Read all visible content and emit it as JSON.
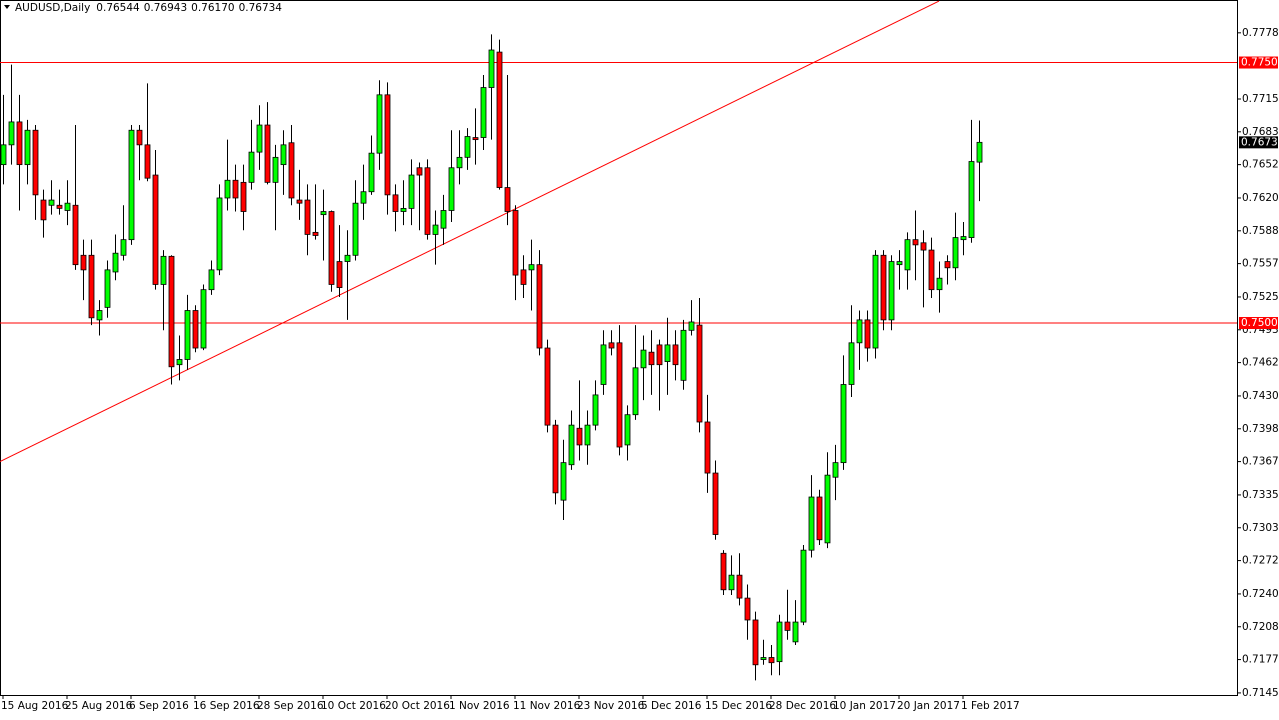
{
  "chart_data": {
    "type": "candlestick",
    "title": "AUDUSD,Daily",
    "last_bar_labels": [
      "0.76544",
      "0.76943",
      "0.76170",
      "0.76734"
    ],
    "categories": [
      "15 Aug 2016",
      null,
      null,
      null,
      null,
      null,
      null,
      null,
      "25 Aug 2016",
      null,
      null,
      null,
      null,
      null,
      null,
      null,
      "6 Sep 2016",
      null,
      null,
      null,
      null,
      null,
      null,
      null,
      "16 Sep 2016",
      null,
      null,
      null,
      null,
      null,
      null,
      null,
      "28 Sep 2016",
      null,
      null,
      null,
      null,
      null,
      null,
      null,
      "10 Oct 2016",
      null,
      null,
      null,
      null,
      null,
      null,
      null,
      "20 Oct 2016",
      null,
      null,
      null,
      null,
      null,
      null,
      null,
      "1 Nov 2016",
      null,
      null,
      null,
      null,
      null,
      null,
      null,
      "11 Nov 2016",
      null,
      null,
      null,
      null,
      null,
      null,
      null,
      "23 Nov 2016",
      null,
      null,
      null,
      null,
      null,
      null,
      null,
      "5 Dec 2016",
      null,
      null,
      null,
      null,
      null,
      null,
      null,
      "15 Dec 2016",
      null,
      null,
      null,
      null,
      null,
      null,
      null,
      "28 Dec 2016",
      null,
      null,
      null,
      null,
      null,
      null,
      null,
      "10 Jan 2017",
      null,
      null,
      null,
      null,
      null,
      null,
      null,
      "20 Jan 2017",
      null,
      null,
      null,
      null,
      null,
      null,
      null,
      "1 Feb 2017",
      null,
      null
    ],
    "open": [
      0.7652,
      0.7671,
      0.7693,
      0.7652,
      0.7685,
      0.7618,
      0.7613,
      0.7613,
      0.7608,
      0.7613,
      0.7565,
      0.7565,
      0.7503,
      0.7515,
      0.7549,
      0.7565,
      0.758,
      0.7685,
      0.7671,
      0.7642,
      0.7537,
      0.7564,
      0.746,
      0.7465,
      0.7512,
      0.7476,
      0.7532,
      0.7551,
      0.762,
      0.7637,
      0.7635,
      0.7635,
      0.7664,
      0.769,
      0.7635,
      0.7652,
      0.7673,
      0.7618,
      0.7618,
      0.7587,
      0.7604,
      0.7607,
      0.7559,
      0.7559,
      0.7565,
      0.7615,
      0.7626,
      0.7663,
      0.7719,
      0.7623,
      0.7607,
      0.761,
      0.7649,
      0.7649,
      0.7585,
      0.7591,
      0.7608,
      0.7649,
      0.7659,
      0.7678,
      0.7678,
      0.7726,
      0.776,
      0.763,
      0.7608,
      0.7551,
      0.7551,
      0.7556,
      0.7476,
      0.7402,
      0.733,
      0.7364,
      0.7399,
      0.7383,
      0.7402,
      0.7441,
      0.7481,
      0.7481,
      0.7383,
      0.7412,
      0.7457,
      0.7472,
      0.7479,
      0.7463,
      0.7479,
      0.7445,
      0.7493,
      0.7498,
      0.7405,
      0.7356,
      0.7279,
      0.7244,
      0.7258,
      0.7236,
      0.7215,
      0.7177,
      0.7179,
      0.7175,
      0.7213,
      0.7194,
      0.7213,
      0.7282,
      0.7333,
      0.7289,
      0.7352,
      0.7366,
      0.7441,
      0.7481,
      0.7503,
      0.7476,
      0.7565,
      0.7503,
      0.7556,
      0.7551,
      0.758,
      0.7577,
      0.757,
      0.7532,
      0.7559,
      0.7553,
      0.758,
      0.7582,
      0.76544
    ],
    "high": [
      0.7719,
      0.7748,
      0.7719,
      0.7695,
      0.769,
      0.7628,
      0.7637,
      0.7628,
      0.7637,
      0.769,
      0.758,
      0.758,
      0.7522,
      0.756,
      0.7585,
      0.7613,
      0.769,
      0.769,
      0.773,
      0.7666,
      0.757,
      0.7565,
      0.7488,
      0.7527,
      0.7517,
      0.7537,
      0.756,
      0.7633,
      0.7676,
      0.7652,
      0.7652,
      0.7695,
      0.7709,
      0.7712,
      0.7671,
      0.7685,
      0.769,
      0.7647,
      0.7633,
      0.7633,
      0.7628,
      0.7608,
      0.7594,
      0.7589,
      0.7637,
      0.7652,
      0.768,
      0.7733,
      0.7731,
      0.7633,
      0.7637,
      0.7657,
      0.7654,
      0.7657,
      0.7608,
      0.7623,
      0.7685,
      0.7685,
      0.7687,
      0.7706,
      0.7738,
      0.7777,
      0.7772,
      0.7738,
      0.7613,
      0.7565,
      0.758,
      0.757,
      0.7484,
      0.7407,
      0.7388,
      0.7416,
      0.7445,
      0.7416,
      0.7445,
      0.7493,
      0.7493,
      0.7498,
      0.7421,
      0.7498,
      0.7488,
      0.7493,
      0.7484,
      0.7505,
      0.7493,
      0.7503,
      0.7522,
      0.7524,
      0.7431,
      0.7368,
      0.7282,
      0.7277,
      0.7279,
      0.7249,
      0.7223,
      0.7196,
      0.7191,
      0.722,
      0.7244,
      0.7234,
      0.7287,
      0.7354,
      0.734,
      0.7376,
      0.7383,
      0.7469,
      0.7517,
      0.7512,
      0.7512,
      0.757,
      0.757,
      0.7565,
      0.757,
      0.7587,
      0.7608,
      0.7589,
      0.7582,
      0.7559,
      0.7565,
      0.7606,
      0.7597,
      0.7695,
      0.76943
    ],
    "low": [
      0.7633,
      0.7652,
      0.7608,
      0.7633,
      0.7599,
      0.7582,
      0.7604,
      0.7604,
      0.7594,
      0.7551,
      0.7522,
      0.7498,
      0.7488,
      0.7505,
      0.7541,
      0.756,
      0.7575,
      0.7637,
      0.7636,
      0.7532,
      0.7493,
      0.7441,
      0.7445,
      0.7455,
      0.7472,
      0.7474,
      0.7527,
      0.7546,
      0.7608,
      0.7607,
      0.7589,
      0.7628,
      0.7647,
      0.7633,
      0.7589,
      0.7623,
      0.7613,
      0.7599,
      0.7565,
      0.758,
      0.756,
      0.753,
      0.7525,
      0.7503,
      0.756,
      0.7599,
      0.7623,
      0.7647,
      0.7604,
      0.7588,
      0.7594,
      0.7594,
      0.7589,
      0.758,
      0.7556,
      0.7575,
      0.7597,
      0.7633,
      0.7647,
      0.7652,
      0.7666,
      0.7676,
      0.7628,
      0.7594,
      0.7522,
      0.7524,
      0.7512,
      0.7469,
      0.7395,
      0.7326,
      0.7311,
      0.7359,
      0.7368,
      0.7364,
      0.7397,
      0.7431,
      0.7469,
      0.7373,
      0.7368,
      0.7407,
      0.7426,
      0.7431,
      0.7416,
      0.7431,
      0.7445,
      0.7436,
      0.7488,
      0.7395,
      0.7337,
      0.7292,
      0.7239,
      0.7239,
      0.7229,
      0.7196,
      0.7157,
      0.7172,
      0.7162,
      0.7162,
      0.7196,
      0.7191,
      0.721,
      0.7275,
      0.7287,
      0.7284,
      0.733,
      0.7359,
      0.7429,
      0.7455,
      0.7463,
      0.7466,
      0.7493,
      0.7493,
      0.7532,
      0.7532,
      0.7541,
      0.7515,
      0.7524,
      0.751,
      0.7537,
      0.7541,
      0.7565,
      0.7577,
      0.7617
    ],
    "close": [
      0.7671,
      0.7693,
      0.7652,
      0.7685,
      0.7623,
      0.7599,
      0.7618,
      0.761,
      0.7615,
      0.7556,
      0.7551,
      0.7505,
      0.7512,
      0.7551,
      0.7567,
      0.758,
      0.7685,
      0.7671,
      0.7639,
      0.7537,
      0.7564,
      0.7458,
      0.7465,
      0.7512,
      0.7476,
      0.7532,
      0.7551,
      0.762,
      0.7637,
      0.762,
      0.7607,
      0.7664,
      0.769,
      0.7635,
      0.7659,
      0.7671,
      0.762,
      0.7615,
      0.7585,
      0.7584,
      0.7607,
      0.7537,
      0.7534,
      0.7565,
      0.7615,
      0.7626,
      0.7663,
      0.7719,
      0.7623,
      0.7607,
      0.761,
      0.7642,
      0.7642,
      0.7585,
      0.7594,
      0.7608,
      0.7649,
      0.7659,
      0.7679,
      0.7676,
      0.7726,
      0.7762,
      0.763,
      0.7607,
      0.7546,
      0.7537,
      0.7556,
      0.7476,
      0.7402,
      0.7337,
      0.7366,
      0.7402,
      0.7383,
      0.7402,
      0.7431,
      0.7479,
      0.7476,
      0.7381,
      0.7412,
      0.7457,
      0.7474,
      0.746,
      0.746,
      0.7479,
      0.746,
      0.7493,
      0.7501,
      0.7405,
      0.7356,
      0.7297,
      0.7244,
      0.7258,
      0.7236,
      0.7215,
      0.7172,
      0.7179,
      0.7174,
      0.7213,
      0.7205,
      0.7213,
      0.7282,
      0.7333,
      0.7292,
      0.7354,
      0.7366,
      0.7441,
      0.7481,
      0.7503,
      0.7476,
      0.7565,
      0.7503,
      0.7559,
      0.7559,
      0.758,
      0.7575,
      0.757,
      0.7532,
      0.7543,
      0.7553,
      0.7582,
      0.7583,
      0.7655,
      0.76734
    ],
    "up_color": "#00ff00",
    "down_color": "#ff0000",
    "wick_color": "#000000",
    "ylim": [
      0.7143,
      0.781
    ],
    "yticks": [
      0.77785,
      {
        "value": 0.7715,
        "label": "0.77150"
      },
      0.76835,
      {
        "value": 0.7652,
        "label": "0.76520"
      },
      {
        "value": 0.762,
        "label": "0.76200"
      },
      0.75885,
      {
        "value": 0.7557,
        "label": "0.75570"
      },
      {
        "value": 0.7525,
        "label": "0.75250"
      },
      0.74935,
      {
        "value": 0.7462,
        "label": "0.74620"
      },
      {
        "value": 0.743,
        "label": "0.74300"
      },
      0.73985,
      {
        "value": 0.7367,
        "label": "0.73670"
      },
      {
        "value": 0.7335,
        "label": "0.73350"
      },
      0.73035,
      {
        "value": 0.7272,
        "label": "0.72720"
      },
      {
        "value": 0.724,
        "label": "0.72400"
      },
      0.72085,
      {
        "value": 0.7177,
        "label": "0.71770"
      },
      {
        "value": 0.7145,
        "label": "0.71450"
      }
    ],
    "hlines": [
      {
        "value": 0.775,
        "label": "0.77500",
        "color": "#ff0000"
      },
      {
        "value": 0.75,
        "label": "0.75000",
        "color": "#ff0000"
      }
    ],
    "trendlines": [
      {
        "x": [
          0,
          117
        ],
        "y": [
          0.7367,
          0.7809
        ],
        "color": "#ff0000"
      }
    ],
    "price_tag_color": "#000000"
  }
}
